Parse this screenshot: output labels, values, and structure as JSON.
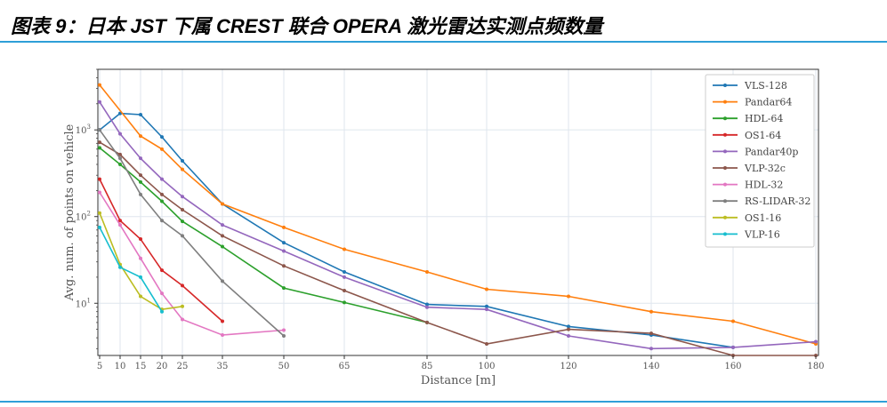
{
  "header": {
    "title": "图表 9：日本 JST 下属 CREST 联合 OPERA 激光雷达实测点频数量",
    "rule_color": "#2e9fd8"
  },
  "chart_data": {
    "type": "line",
    "xlabel": "Distance [m]",
    "ylabel": "Avg. num. of points on vehicle",
    "y_scale": "log",
    "ylim": [
      2.5,
      5000
    ],
    "x_ticks": [
      5,
      10,
      15,
      20,
      25,
      35,
      50,
      65,
      85,
      100,
      120,
      140,
      160,
      180
    ],
    "y_ticks": [
      {
        "value": 10,
        "base": "10",
        "exp": "1"
      },
      {
        "value": 100,
        "base": "10",
        "exp": "2"
      },
      {
        "value": 1000,
        "base": "10",
        "exp": "3"
      }
    ],
    "grid": true,
    "legend_position": "top-right",
    "series": [
      {
        "name": "VLS-128",
        "color": "#1f77b4",
        "x": [
          5,
          10,
          15,
          20,
          25,
          35,
          50,
          65,
          85,
          100,
          120,
          140,
          160
        ],
        "y": [
          1000,
          1550,
          1500,
          830,
          440,
          140,
          50,
          23,
          9.7,
          9.2,
          5.4,
          4.3,
          3.1
        ]
      },
      {
        "name": "Pandar64",
        "color": "#ff7f0e",
        "x": [
          5,
          15,
          20,
          25,
          35,
          50,
          65,
          85,
          100,
          120,
          140,
          160,
          180
        ],
        "y": [
          3300,
          850,
          600,
          350,
          140,
          75,
          42,
          23,
          14.5,
          12,
          8,
          6.2,
          3.4
        ]
      },
      {
        "name": "HDL-64",
        "color": "#2ca02c",
        "x": [
          5,
          10,
          15,
          20,
          25,
          35,
          50,
          65,
          85
        ],
        "y": [
          620,
          400,
          250,
          150,
          88,
          45,
          15,
          10.2,
          6
        ]
      },
      {
        "name": "OS1-64",
        "color": "#d62728",
        "x": [
          5,
          10,
          15,
          20,
          25,
          35
        ],
        "y": [
          270,
          90,
          55,
          24,
          16,
          6.2
        ]
      },
      {
        "name": "Pandar40p",
        "color": "#9467bd",
        "x": [
          5,
          10,
          15,
          20,
          25,
          35,
          50,
          65,
          85,
          100,
          120,
          140,
          160,
          180
        ],
        "y": [
          2100,
          900,
          470,
          270,
          170,
          80,
          40,
          20,
          9,
          8.5,
          4.2,
          3,
          3.1,
          3.6
        ]
      },
      {
        "name": "VLP-32c",
        "color": "#8c564b",
        "x": [
          5,
          10,
          15,
          20,
          25,
          35,
          50,
          65,
          85,
          100,
          120,
          140,
          160,
          180
        ],
        "y": [
          720,
          520,
          300,
          180,
          120,
          60,
          27,
          14,
          6,
          3.4,
          5,
          4.5,
          2.5,
          2.5
        ]
      },
      {
        "name": "HDL-32",
        "color": "#e377c2",
        "x": [
          5,
          10,
          15,
          20,
          25,
          35,
          50
        ],
        "y": [
          190,
          80,
          33,
          13,
          6.5,
          4.3,
          4.9
        ]
      },
      {
        "name": "RS-LIDAR-32",
        "color": "#7f7f7f",
        "x": [
          5,
          10,
          15,
          20,
          25,
          35,
          50
        ],
        "y": [
          1000,
          470,
          180,
          90,
          60,
          18,
          4.2
        ]
      },
      {
        "name": "OS1-16",
        "color": "#bcbd22",
        "x": [
          5,
          10,
          15,
          20,
          25
        ],
        "y": [
          110,
          28,
          12,
          8.5,
          9.2
        ]
      },
      {
        "name": "VLP-16",
        "color": "#17becf",
        "x": [
          5,
          10,
          15,
          20
        ],
        "y": [
          75,
          26,
          20,
          8
        ]
      }
    ]
  }
}
